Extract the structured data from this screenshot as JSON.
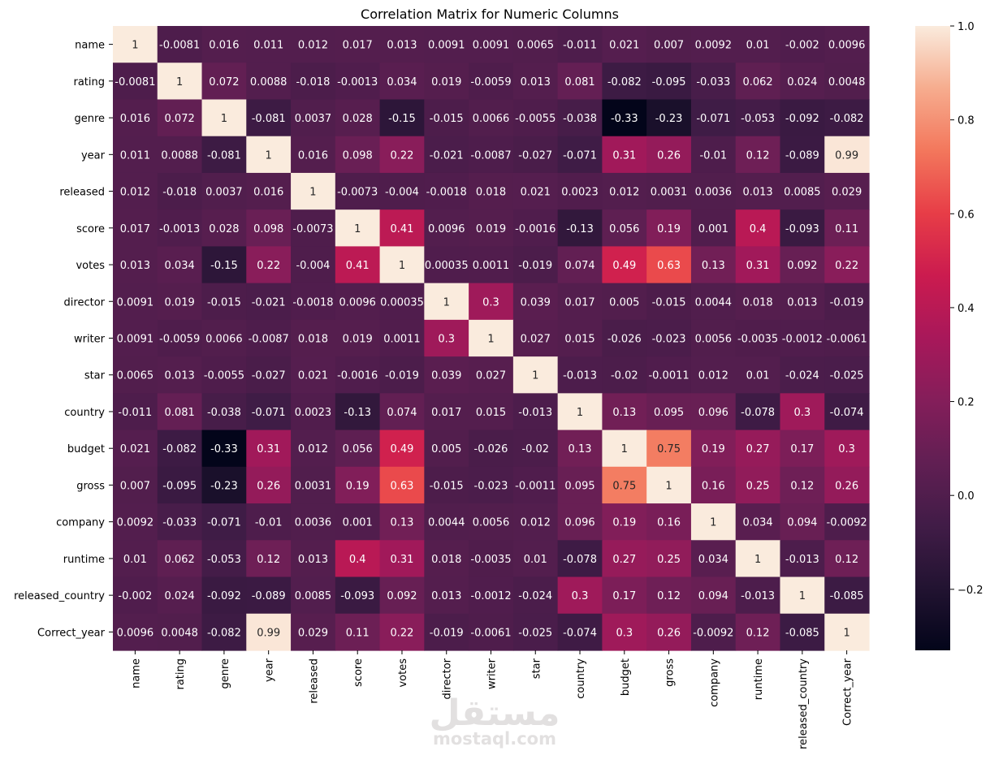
{
  "chart_data": {
    "type": "heatmap",
    "title": "Correlation Matrix for Numeric Columns",
    "labels": [
      "name",
      "rating",
      "genre",
      "year",
      "released",
      "score",
      "votes",
      "director",
      "writer",
      "star",
      "country",
      "budget",
      "gross",
      "company",
      "runtime",
      "released_country",
      "Correct_year"
    ],
    "cell_text": [
      [
        "1",
        "-0.0081",
        "0.016",
        "0.011",
        "0.012",
        "0.017",
        "0.013",
        "0.0091",
        "0.0091",
        "0.0065",
        "-0.011",
        "0.021",
        "0.007",
        "0.0092",
        "0.01",
        "-0.002",
        "0.0096"
      ],
      [
        "-0.0081",
        "1",
        "0.072",
        "0.0088",
        "-0.018",
        "-0.0013",
        "0.034",
        "0.019",
        "-0.0059",
        "0.013",
        "0.081",
        "-0.082",
        "-0.095",
        "-0.033",
        "0.062",
        "0.024",
        "0.0048"
      ],
      [
        "0.016",
        "0.072",
        "1",
        "-0.081",
        "0.0037",
        "0.028",
        "-0.15",
        "-0.015",
        "0.0066",
        "-0.0055",
        "-0.038",
        "-0.33",
        "-0.23",
        "-0.071",
        "-0.053",
        "-0.092",
        "-0.082"
      ],
      [
        "0.011",
        "0.0088",
        "-0.081",
        "1",
        "0.016",
        "0.098",
        "0.22",
        "-0.021",
        "-0.0087",
        "-0.027",
        "-0.071",
        "0.31",
        "0.26",
        "-0.01",
        "0.12",
        "-0.089",
        "0.99"
      ],
      [
        "0.012",
        "-0.018",
        "0.0037",
        "0.016",
        "1",
        "-0.0073",
        "-0.004",
        "-0.0018",
        "0.018",
        "0.021",
        "0.0023",
        "0.012",
        "0.0031",
        "0.0036",
        "0.013",
        "0.0085",
        "0.029"
      ],
      [
        "0.017",
        "-0.0013",
        "0.028",
        "0.098",
        "-0.0073",
        "1",
        "0.41",
        "0.0096",
        "0.019",
        "-0.0016",
        "-0.13",
        "0.056",
        "0.19",
        "0.001",
        "0.4",
        "-0.093",
        "0.11"
      ],
      [
        "0.013",
        "0.034",
        "-0.15",
        "0.22",
        "-0.004",
        "0.41",
        "1",
        "0.00035",
        "0.0011",
        "-0.019",
        "0.074",
        "0.49",
        "0.63",
        "0.13",
        "0.31",
        "0.092",
        "0.22"
      ],
      [
        "0.0091",
        "0.019",
        "-0.015",
        "-0.021",
        "-0.0018",
        "0.0096",
        "0.00035",
        "1",
        "0.3",
        "0.039",
        "0.017",
        "0.005",
        "-0.015",
        "0.0044",
        "0.018",
        "0.013",
        "-0.019"
      ],
      [
        "0.0091",
        "-0.0059",
        "0.0066",
        "-0.0087",
        "0.018",
        "0.019",
        "0.0011",
        "0.3",
        "1",
        "0.027",
        "0.015",
        "-0.026",
        "-0.023",
        "0.0056",
        "-0.0035",
        "-0.0012",
        "-0.0061"
      ],
      [
        "0.0065",
        "0.013",
        "-0.0055",
        "-0.027",
        "0.021",
        "-0.0016",
        "-0.019",
        "0.039",
        "0.027",
        "1",
        "-0.013",
        "-0.02",
        "-0.0011",
        "0.012",
        "0.01",
        "-0.024",
        "-0.025"
      ],
      [
        "-0.011",
        "0.081",
        "-0.038",
        "-0.071",
        "0.0023",
        "-0.13",
        "0.074",
        "0.017",
        "0.015",
        "-0.013",
        "1",
        "0.13",
        "0.095",
        "0.096",
        "-0.078",
        "0.3",
        "-0.074"
      ],
      [
        "0.021",
        "-0.082",
        "-0.33",
        "0.31",
        "0.012",
        "0.056",
        "0.49",
        "0.005",
        "-0.026",
        "-0.02",
        "0.13",
        "1",
        "0.75",
        "0.19",
        "0.27",
        "0.17",
        "0.3"
      ],
      [
        "0.007",
        "-0.095",
        "-0.23",
        "0.26",
        "0.0031",
        "0.19",
        "0.63",
        "-0.015",
        "-0.023",
        "-0.0011",
        "0.095",
        "0.75",
        "1",
        "0.16",
        "0.25",
        "0.12",
        "0.26"
      ],
      [
        "0.0092",
        "-0.033",
        "-0.071",
        "-0.01",
        "0.0036",
        "0.001",
        "0.13",
        "0.0044",
        "0.0056",
        "0.012",
        "0.096",
        "0.19",
        "0.16",
        "1",
        "0.034",
        "0.094",
        "-0.0092"
      ],
      [
        "0.01",
        "0.062",
        "-0.053",
        "0.12",
        "0.013",
        "0.4",
        "0.31",
        "0.018",
        "-0.0035",
        "0.01",
        "-0.078",
        "0.27",
        "0.25",
        "0.034",
        "1",
        "-0.013",
        "0.12"
      ],
      [
        "-0.002",
        "0.024",
        "-0.092",
        "-0.089",
        "0.0085",
        "-0.093",
        "0.092",
        "0.013",
        "-0.0012",
        "-0.024",
        "0.3",
        "0.17",
        "0.12",
        "0.094",
        "-0.013",
        "1",
        "-0.085"
      ],
      [
        "0.0096",
        "0.0048",
        "-0.082",
        "0.99",
        "0.029",
        "0.11",
        "0.22",
        "-0.019",
        "-0.0061",
        "-0.025",
        "-0.074",
        "0.3",
        "0.26",
        "-0.0092",
        "0.12",
        "-0.085",
        "1"
      ]
    ],
    "vmin": -0.33,
    "vmax": 1.0,
    "colormap": "rocket",
    "colorbar_ticks": [
      -0.2,
      0.0,
      0.2,
      0.4,
      0.6,
      0.8,
      1.0
    ],
    "colorbar_tick_labels": [
      "−0.2",
      "0.0",
      "0.2",
      "0.4",
      "0.6",
      "0.8",
      "1.0"
    ]
  },
  "watermark": {
    "arabic": "مستقل",
    "latin": "mostaql.com"
  }
}
